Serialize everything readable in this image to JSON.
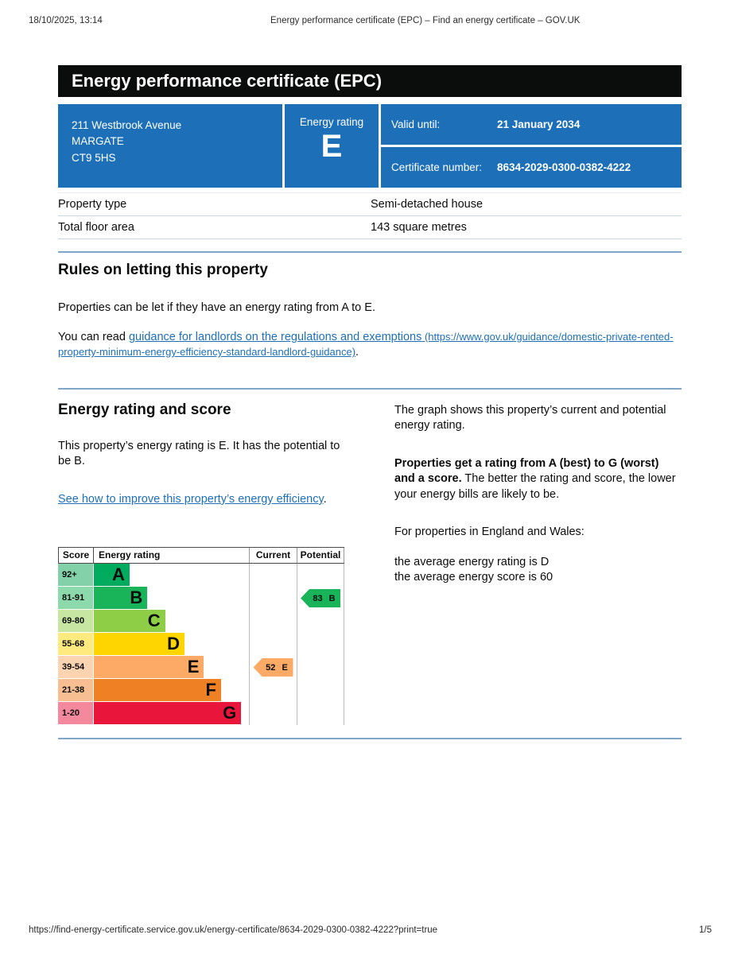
{
  "print_header": {
    "datetime": "18/10/2025, 13:14",
    "title": "Energy performance certificate (EPC) – Find an energy certificate – GOV.UK"
  },
  "banner": {
    "title": "Energy performance certificate (EPC)"
  },
  "summary_box": {
    "address_lines": [
      "211 Westbrook Avenue",
      "MARGATE",
      "CT9 5HS"
    ],
    "rating_label": "Energy rating",
    "rating": "E",
    "valid_until_label": "Valid until:",
    "valid_until": "21 January 2034",
    "certificate_number_label": "Certificate number:",
    "certificate_number": "8634-2029-0300-0382-4222",
    "box_color": "#1d70b8"
  },
  "property_table": {
    "rows": [
      {
        "label": "Property type",
        "value": "Semi-detached house"
      },
      {
        "label": "Total floor area",
        "value": "143 square metres"
      }
    ]
  },
  "rules_section": {
    "heading": "Rules on letting this property",
    "para1": "Properties can be let if they have an energy rating from A to E.",
    "para2_prefix": "You can read ",
    "link_text": "guidance for landlords on the regulations and exemptions",
    "link_url_suffix": " (https://www.gov.uk/guidance/domestic-private-rented-property-minimum-energy-efficiency-standard-landlord-guidance)",
    "para2_suffix": "."
  },
  "rating_section": {
    "heading": "Energy rating and score",
    "para1": "This property’s energy rating is E. It has the potential to be B.",
    "improve_link": "See how to improve this property’s energy efficiency",
    "improve_link_suffix": ".",
    "right_para1": "The graph shows this property’s current and potential energy rating.",
    "right_para2_bold": "Properties get a rating from A (best) to G (worst) and a score.",
    "right_para2_rest": " The better the rating and score, the lower your energy bills are likely to be.",
    "right_para3": "For properties in England and Wales:",
    "right_para4_line1": "the average energy rating is D",
    "right_para4_line2": "the average energy score is 60"
  },
  "chart_data": {
    "type": "bar",
    "orientation": "horizontal",
    "columns": {
      "score": "Score",
      "rating": "Energy rating",
      "current": "Current",
      "potential": "Potential"
    },
    "bands": [
      {
        "score": "92+",
        "letter": "A",
        "color": "#00ab5e",
        "tint": "#82d1a8",
        "width_pct": 23
      },
      {
        "score": "81-91",
        "letter": "B",
        "color": "#19b459",
        "tint": "#8cd9ac",
        "width_pct": 34.5
      },
      {
        "score": "69-80",
        "letter": "C",
        "color": "#8dce46",
        "tint": "#c6e6a2",
        "width_pct": 46
      },
      {
        "score": "55-68",
        "letter": "D",
        "color": "#ffd500",
        "tint": "#ffea7f",
        "width_pct": 58.5
      },
      {
        "score": "39-54",
        "letter": "E",
        "color": "#fcaa65",
        "tint": "#fdd4b2",
        "width_pct": 71
      },
      {
        "score": "21-38",
        "letter": "F",
        "color": "#ef8023",
        "tint": "#f7bf91",
        "width_pct": 82
      },
      {
        "score": "1-20",
        "letter": "G",
        "color": "#e9153b",
        "tint": "#f4899d",
        "width_pct": 95
      }
    ],
    "current": {
      "score": 52,
      "letter": "E",
      "label": "52 E",
      "band_index": 4,
      "color": "#fcaa65"
    },
    "potential": {
      "score": 83,
      "letter": "B",
      "label": "83 B",
      "band_index": 1,
      "color": "#19b459"
    }
  },
  "print_footer": {
    "url": "https://find-energy-certificate.service.gov.uk/energy-certificate/8634-2029-0300-0382-4222?print=true",
    "page": "1/5"
  }
}
